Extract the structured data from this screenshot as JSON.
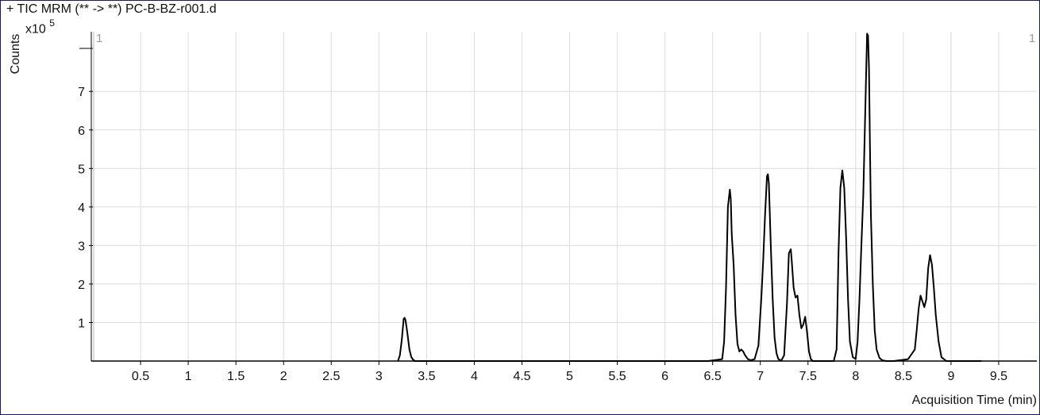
{
  "chart_data": {
    "type": "line",
    "title": "+ TIC MRM (** -> **) PC-B-BZ-r001.d",
    "xlabel": "Acquisition Time (min)",
    "ylabel": "Counts",
    "y_exponent_base": "x10",
    "y_exponent_power": "5",
    "cursor_left_label": "1",
    "cursor_right_label": "1",
    "xlim": [
      0.0,
      9.9
    ],
    "ylim": [
      0,
      8.55
    ],
    "xticks": [
      0.5,
      1,
      1.5,
      2,
      2.5,
      3,
      3.5,
      4,
      4.5,
      5,
      5.5,
      6,
      6.5,
      7,
      7.5,
      8,
      8.5,
      9,
      9.5
    ],
    "xtick_labels": [
      "0.5",
      "1",
      "1.5",
      "2",
      "2.5",
      "3",
      "3.5",
      "4",
      "4.5",
      "5",
      "5.5",
      "6",
      "6.5",
      "7",
      "7.5",
      "8",
      "8.5",
      "9",
      "9.5"
    ],
    "yticks": [
      1,
      2,
      3,
      4,
      5,
      6,
      7
    ],
    "ytick_labels": [
      "1",
      "2",
      "3",
      "4",
      "5",
      "6",
      "7"
    ],
    "grid": true,
    "series": [
      {
        "color": "#000000",
        "x": [
          3.2,
          3.22,
          3.24,
          3.26,
          3.27,
          3.28,
          3.3,
          3.32,
          3.34,
          3.36,
          3.38,
          6.45,
          6.6,
          6.62,
          6.64,
          6.66,
          6.68,
          6.69,
          6.7,
          6.72,
          6.74,
          6.76,
          6.78,
          6.8,
          6.82,
          6.84,
          6.87,
          6.9,
          6.94,
          6.98,
          7.01,
          7.03,
          7.05,
          7.07,
          7.08,
          7.09,
          7.11,
          7.13,
          7.15,
          7.17,
          7.19,
          7.22,
          7.25,
          7.28,
          7.3,
          7.32,
          7.33,
          7.35,
          7.37,
          7.39,
          7.41,
          7.43,
          7.45,
          7.47,
          7.49,
          7.51,
          7.53,
          7.55,
          7.58,
          7.6,
          7.7,
          7.77,
          7.8,
          7.82,
          7.84,
          7.86,
          7.88,
          7.9,
          7.92,
          7.94,
          7.97,
          8.0,
          8.02,
          8.04,
          8.06,
          8.08,
          8.1,
          8.12,
          8.13,
          8.14,
          8.15,
          8.16,
          8.18,
          8.2,
          8.22,
          8.25,
          8.28,
          8.32,
          8.4,
          8.55,
          8.62,
          8.64,
          8.66,
          8.68,
          8.7,
          8.72,
          8.74,
          8.76,
          8.78,
          8.8,
          8.82,
          8.84,
          8.87,
          8.9,
          8.95,
          9.32
        ],
        "y": [
          0.0,
          0.15,
          0.55,
          1.1,
          1.12,
          1.05,
          0.7,
          0.3,
          0.1,
          0.03,
          0.0,
          0.0,
          0.05,
          0.5,
          1.9,
          4.0,
          4.45,
          4.2,
          3.3,
          2.5,
          1.2,
          0.45,
          0.25,
          0.3,
          0.25,
          0.15,
          0.05,
          0.02,
          0.05,
          0.4,
          1.6,
          2.6,
          3.8,
          4.8,
          4.85,
          4.6,
          3.0,
          1.6,
          0.6,
          0.2,
          0.05,
          0.01,
          0.15,
          1.5,
          2.8,
          2.9,
          2.6,
          1.9,
          1.65,
          1.7,
          1.2,
          0.85,
          0.95,
          1.15,
          0.75,
          0.25,
          0.05,
          0.0,
          0.0,
          0.0,
          0.0,
          0.0,
          0.3,
          2.8,
          4.5,
          4.95,
          4.5,
          3.2,
          1.6,
          0.5,
          0.1,
          0.05,
          0.5,
          1.6,
          3.0,
          4.3,
          6.4,
          8.5,
          8.45,
          7.6,
          5.6,
          3.8,
          2.0,
          0.8,
          0.3,
          0.08,
          0.02,
          0.0,
          0.0,
          0.05,
          0.3,
          0.8,
          1.35,
          1.7,
          1.55,
          1.4,
          1.6,
          2.4,
          2.75,
          2.5,
          1.9,
          1.2,
          0.5,
          0.1,
          0.0,
          0.0
        ]
      }
    ]
  }
}
